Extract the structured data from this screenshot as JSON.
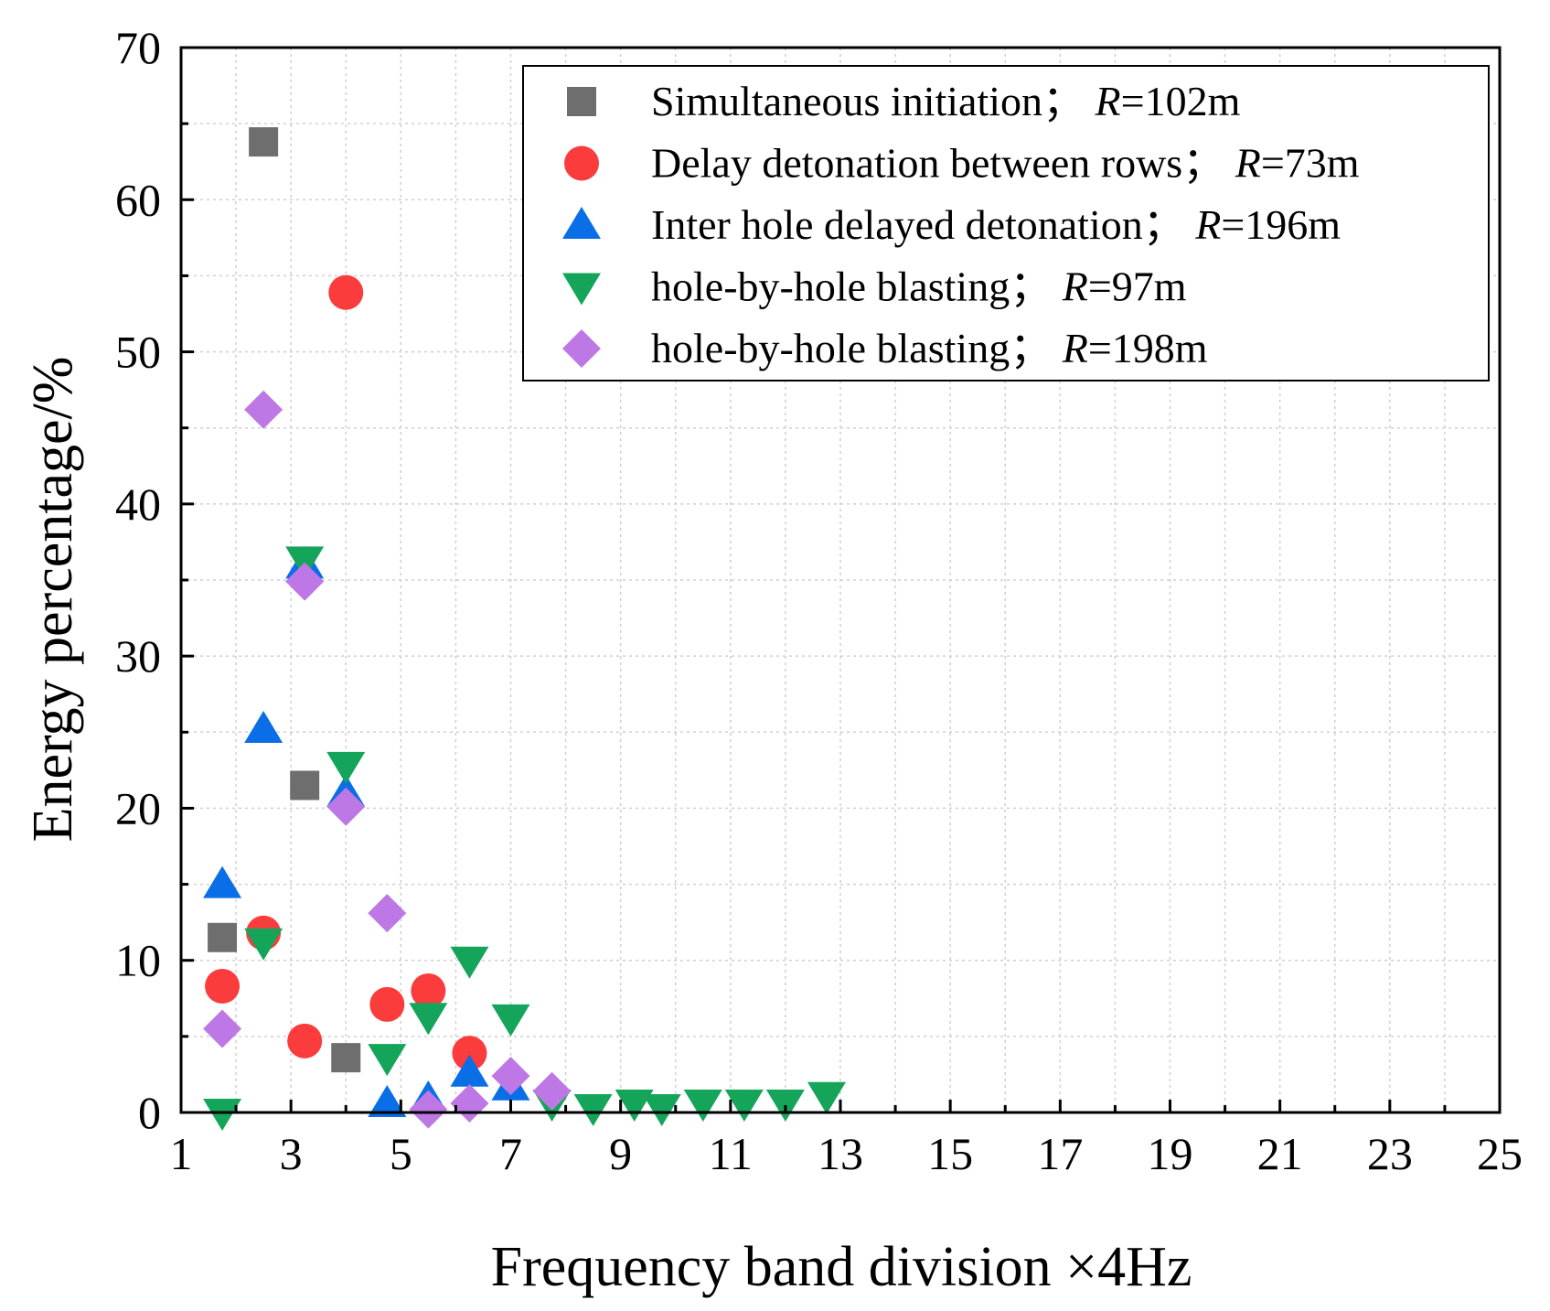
{
  "chart_data": {
    "type": "scatter",
    "xlabel": "Frequency band division ×4Hz",
    "ylabel": "Energy percentage/%",
    "xlim": [
      1,
      25
    ],
    "ylim": [
      0,
      70
    ],
    "xticks": [
      "1",
      "3",
      "5",
      "7",
      "9",
      "11",
      "13",
      "15",
      "17",
      "19",
      "21",
      "23",
      "25"
    ],
    "yticks": [
      "0",
      "10",
      "20",
      "30",
      "40",
      "50",
      "60",
      "70"
    ],
    "grid": true,
    "legend_position": "top-right",
    "series": [
      {
        "name": "Simultaneous initiation；",
        "r_label": "R",
        "r_value": "=102m",
        "marker": "square",
        "color": "#6e6e6e",
        "x": [
          1.75,
          2.5,
          3.25,
          4.0
        ],
        "y": [
          11.5,
          63.8,
          21.5,
          3.6
        ]
      },
      {
        "name": "Delay detonation between rows；",
        "r_label": "R",
        "r_value": "=73m",
        "marker": "circle",
        "color": "#fa3c3c",
        "x": [
          1.75,
          2.5,
          3.25,
          4.0,
          4.75,
          5.5,
          6.25
        ],
        "y": [
          8.3,
          11.8,
          4.7,
          53.9,
          7.1,
          8.0,
          3.9
        ]
      },
      {
        "name": "Inter hole delayed detonation；",
        "r_label": "R",
        "r_value": "=196m",
        "marker": "triangle-up",
        "color": "#0a6ee6",
        "x": [
          1.75,
          2.5,
          3.25,
          4.0,
          4.75,
          5.5,
          6.25,
          7.0
        ],
        "y": [
          15.0,
          25.2,
          36.0,
          21.0,
          0.6,
          0.9,
          2.6,
          1.7
        ]
      },
      {
        "name": "hole-by-hole blasting；",
        "r_label": "R",
        "r_value": "=97m",
        "marker": "triangle-down",
        "color": "#14a55a",
        "x": [
          1.75,
          2.5,
          3.25,
          4.0,
          4.75,
          5.5,
          6.25,
          7.0,
          7.75,
          8.5,
          9.25,
          9.75,
          10.5,
          11.25,
          12.0,
          12.75
        ],
        "y": [
          0.0,
          11.2,
          36.3,
          22.8,
          3.6,
          6.3,
          10.0,
          6.2,
          0.6,
          0.3,
          0.6,
          0.3,
          0.6,
          0.6,
          0.6,
          1.1
        ]
      },
      {
        "name": "hole-by-hole blasting；",
        "r_label": "R",
        "r_value": "=198m",
        "marker": "diamond",
        "color": "#be78e6",
        "x": [
          1.75,
          2.5,
          3.25,
          4.0,
          4.75,
          5.5,
          6.25,
          7.0,
          7.75
        ],
        "y": [
          5.5,
          46.2,
          34.9,
          20.1,
          13.1,
          0.2,
          0.6,
          2.4,
          1.4
        ]
      }
    ]
  }
}
